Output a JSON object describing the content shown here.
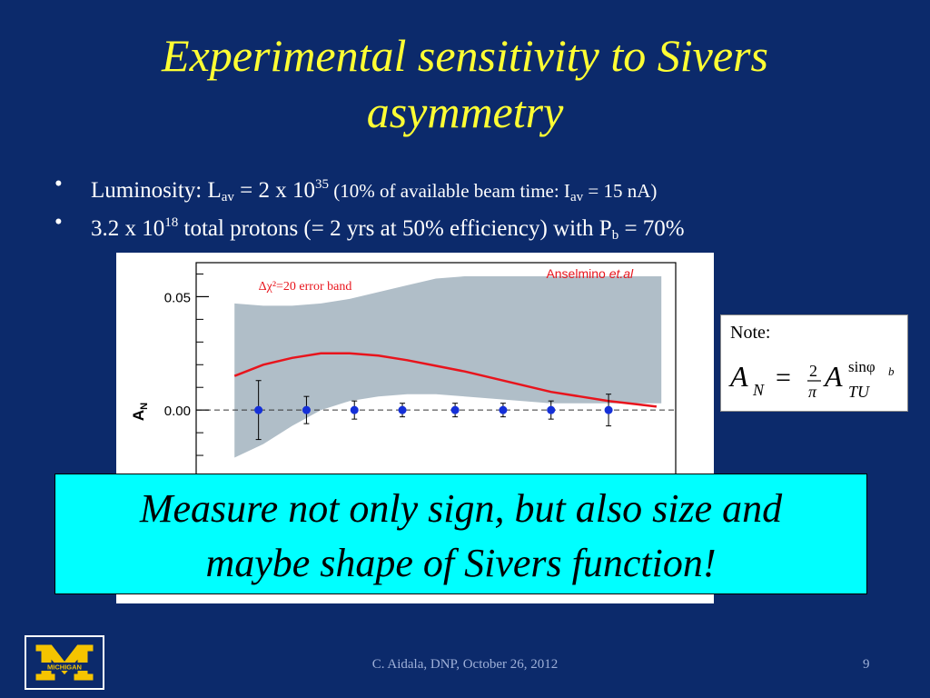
{
  "slide": {
    "title_line1": "Experimental sensitivity to Sivers",
    "title_line2": "asymmetry",
    "bullet_symbol": "•",
    "bullets": [
      {
        "a": "Luminosity: L",
        "a_sub": "av",
        "b": " = 2 x 10",
        "b_sup": "35",
        "c": " (10% of available beam time: I",
        "c_sub": "av",
        "d": " = 15 nA)"
      },
      {
        "a": "3.2 x 10",
        "a_sup": "18",
        "b": " total protons  (= 2 yrs at 50% efficiency) with P",
        "b_sub": "b",
        "c": " = 70%"
      }
    ],
    "note_label": "Note:",
    "formula": {
      "lhs": "A",
      "lhs_sub": "N",
      "eq": "=",
      "num": "2",
      "den": "π",
      "rhs": "A",
      "rhs_sup": "sinφ",
      "rhs_sup_sub": "b",
      "rhs_sub": "TU"
    },
    "callout_line1": "Measure not only sign, but also size and",
    "callout_line2": "maybe shape of Sivers function!",
    "logo_text": "MICHIGAN",
    "footer": "C. Aidala, DNP, October 26, 2012",
    "page_number": "9"
  },
  "chart_data": {
    "type": "line",
    "ylabel": "A",
    "ylabel_sub": "N",
    "ylim": [
      -0.03,
      0.065
    ],
    "xlim": [
      0,
      100
    ],
    "y_ticks": [
      {
        "value": 0.05,
        "label": "0.05"
      },
      {
        "value": 0.0,
        "label": "0.00"
      }
    ],
    "y_minor_ticks": [
      0.06,
      0.04,
      0.03,
      0.02,
      0.01,
      -0.01,
      -0.02
    ],
    "annotations": {
      "band_label": "Δχ²=20 error band",
      "source_name": "Anselmino",
      "source_etal": "et.al"
    },
    "colors": {
      "band": "#b0bec8",
      "curve": "#e8141c",
      "points": "#1530d8",
      "background": "#ffffff"
    },
    "band": {
      "x": [
        8,
        14,
        20,
        26,
        32,
        38,
        44,
        50,
        56,
        62,
        68,
        74,
        80,
        86,
        92,
        97
      ],
      "upper": [
        0.047,
        0.046,
        0.046,
        0.047,
        0.049,
        0.052,
        0.055,
        0.058,
        0.059,
        0.059,
        0.059,
        0.059,
        0.059,
        0.059,
        0.059,
        0.059
      ],
      "lower": [
        -0.021,
        -0.015,
        -0.007,
        0.0,
        0.004,
        0.006,
        0.007,
        0.007,
        0.006,
        0.005,
        0.004,
        0.003,
        0.003,
        0.003,
        0.003,
        0.003
      ]
    },
    "curve": {
      "x": [
        8,
        14,
        20,
        26,
        32,
        38,
        44,
        50,
        56,
        62,
        68,
        74,
        80,
        86,
        92,
        96
      ],
      "y": [
        0.015,
        0.02,
        0.023,
        0.025,
        0.025,
        0.024,
        0.022,
        0.0195,
        0.017,
        0.014,
        0.011,
        0.008,
        0.006,
        0.004,
        0.0025,
        0.0015
      ]
    },
    "points": [
      {
        "x": 13,
        "y": 0.0,
        "err": 0.013
      },
      {
        "x": 23,
        "y": 0.0,
        "err": 0.006
      },
      {
        "x": 33,
        "y": 0.0,
        "err": 0.004
      },
      {
        "x": 43,
        "y": 0.0,
        "err": 0.003
      },
      {
        "x": 54,
        "y": 0.0,
        "err": 0.003
      },
      {
        "x": 64,
        "y": 0.0,
        "err": 0.003
      },
      {
        "x": 74,
        "y": 0.0,
        "err": 0.004
      },
      {
        "x": 86,
        "y": 0.0,
        "err": 0.007
      }
    ]
  }
}
